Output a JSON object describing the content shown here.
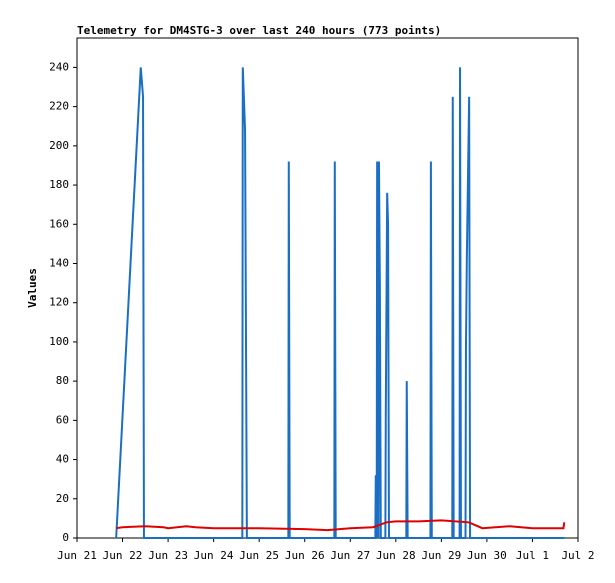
{
  "chart_data": {
    "type": "line",
    "title": "Telemetry for DM4STG-3 over last 240 hours (773 points)",
    "y_label": "Values",
    "xlim": [
      0,
      11
    ],
    "xticks": [
      {
        "value": 0,
        "label": "Jun 21"
      },
      {
        "value": 1,
        "label": "Jun 22"
      },
      {
        "value": 2,
        "label": "Jun 23"
      },
      {
        "value": 3,
        "label": "Jun 24"
      },
      {
        "value": 4,
        "label": "Jun 25"
      },
      {
        "value": 5,
        "label": "Jun 26"
      },
      {
        "value": 6,
        "label": "Jun 27"
      },
      {
        "value": 7,
        "label": "Jun 28"
      },
      {
        "value": 8,
        "label": "Jun 29"
      },
      {
        "value": 9,
        "label": "Jun 30"
      },
      {
        "value": 10,
        "label": "Jul 1"
      },
      {
        "value": 11,
        "label": "Jul 2"
      }
    ],
    "ylim": [
      0,
      255
    ],
    "yticks": [
      0,
      20,
      40,
      60,
      80,
      100,
      120,
      140,
      160,
      180,
      200,
      220,
      240
    ],
    "series": [
      {
        "color": "#1a6fc4",
        "x": [
          0.86,
          1.4,
          1.45,
          1.47,
          3.63,
          3.64,
          3.69,
          3.71,
          3.73,
          4.64,
          4.65,
          4.67,
          5.65,
          5.66,
          5.68,
          6.55,
          6.56,
          6.58,
          6.59,
          6.62,
          6.63,
          6.65,
          6.67,
          6.77,
          6.78,
          6.81,
          6.83,
          6.85,
          7.23,
          7.24,
          7.26,
          7.76,
          7.77,
          7.79,
          8.24,
          8.25,
          8.27,
          8.4,
          8.41,
          8.43,
          8.53,
          8.54,
          8.56,
          8.61,
          8.63,
          10.7
        ],
        "values": [
          0,
          240,
          225,
          0,
          0,
          240,
          208,
          104,
          0,
          0,
          192,
          0,
          0,
          192,
          0,
          0,
          32,
          0,
          192,
          0,
          192,
          128,
          0,
          0,
          64,
          176,
          160,
          0,
          0,
          80,
          0,
          0,
          192,
          0,
          0,
          225,
          0,
          0,
          240,
          0,
          0,
          97,
          144,
          225,
          0,
          0
        ]
      },
      {
        "color": "#e00000",
        "x": [
          0.86,
          1.0,
          1.5,
          1.9,
          2.0,
          2.4,
          2.6,
          3.0,
          4.0,
          5.0,
          5.5,
          6.0,
          6.5,
          6.8,
          7.0,
          7.5,
          8.0,
          8.6,
          8.9,
          9.5,
          10.0,
          10.68,
          10.7
        ],
        "values": [
          5,
          5.5,
          6,
          5.5,
          5,
          6,
          5.5,
          5,
          5,
          4.5,
          4,
          5,
          5.5,
          8,
          8.5,
          8.5,
          9,
          8,
          5,
          6,
          5,
          5,
          8
        ]
      }
    ]
  }
}
